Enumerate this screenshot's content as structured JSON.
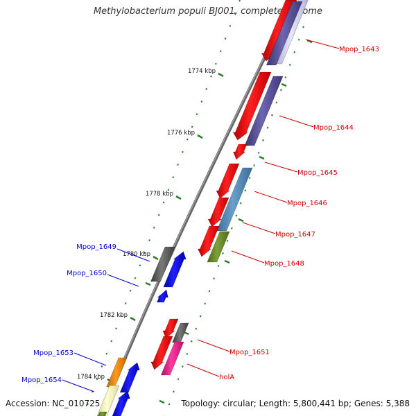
{
  "title": "Methylobacterium populi BJ001, complete genome",
  "footer": {
    "accession": "Accession: NC_010725",
    "stats": "Topology: circular; Length: 5,800,441 bp; Genes: 5,388"
  },
  "colors": {
    "backbone": "#777777",
    "forward_strand": "#ff0000",
    "reverse_strand": "#0000ff",
    "tick": "#2a7a2a",
    "label_forward": "#cc0000",
    "label_reverse": "#0000cc"
  },
  "scale_labels": [
    "1774 kbp",
    "1776 kbp",
    "1778 kbp",
    "1780 kbp",
    "1782 kbp",
    "1784 kbp"
  ],
  "gene_labels_right": [
    "Mpop_1643",
    "Mpop_1644",
    "Mpop_1645",
    "Mpop_1646",
    "Mpop_1647",
    "Mpop_1648",
    "Mpop_1651",
    "holA"
  ],
  "gene_labels_left": [
    "Mpop_1649",
    "Mpop_1650",
    "Mpop_1653",
    "Mpop_1654"
  ]
}
